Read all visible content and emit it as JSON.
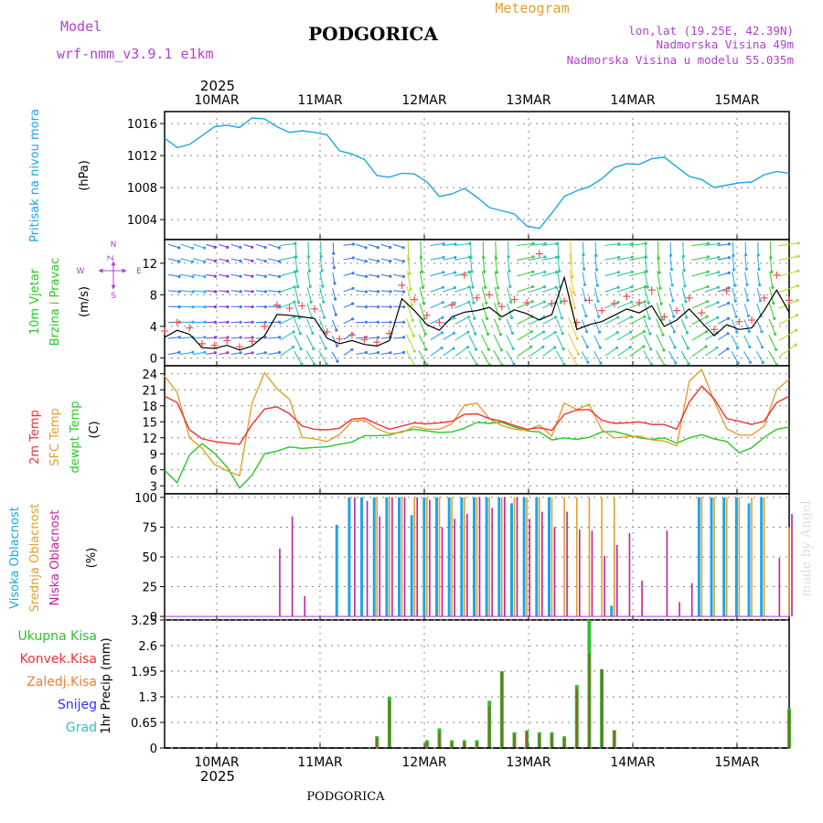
{
  "header": {
    "model_label": "Model",
    "model_name": "wrf-nmm_v3.9.1  e1km",
    "city": "PODGORICA",
    "meteogram": "Meteogram",
    "lonlat": "lon,lat (19.25E, 42.39N)",
    "elevation": "Nadmorska Visina 49m",
    "model_elevation": "Nadmorska Visina u modelu 55.035m",
    "footer_city": "PODGORICA",
    "watermark": "made by Angel"
  },
  "colors": {
    "pressure": "#1ea5e6",
    "temp2m": "#f03232",
    "sfc": "#e0a030",
    "dew": "#28c828",
    "magenta": "#c020a0",
    "violet": "#b040d0",
    "total_precip": "#30c030",
    "orange": "#f08030",
    "blue": "#3030ff",
    "cyan": "#30c0c0"
  },
  "chart_data": {
    "type": "line",
    "time_axis": {
      "year": "2025",
      "day_labels": [
        "10MAR",
        "11MAR",
        "12MAR",
        "13MAR",
        "14MAR",
        "15MAR"
      ]
    },
    "panels": [
      {
        "id": "pressure",
        "type": "line",
        "ylabel_rotated": "Pritisak na nivou mora",
        "unit": "(hPa)",
        "ylim": [
          1001.5,
          1017.5
        ],
        "yticks": [
          "1004",
          "1008",
          "1012",
          "1016"
        ],
        "series": [
          {
            "values": [
              1014.2,
              1013.0,
              1013.4,
              1014.5,
              1015.6,
              1015.8,
              1015.5,
              1016.7,
              1016.6,
              1015.6,
              1014.9,
              1015.1,
              1014.9,
              1014.6,
              1012.6,
              1012.2,
              1011.5,
              1009.5,
              1009.3,
              1009.8,
              1009.7,
              1008.7,
              1006.9,
              1007.2,
              1007.9,
              1006.8,
              1005.5,
              1005.1,
              1004.7,
              1003.2,
              1002.9,
              1004.8,
              1006.9,
              1007.6,
              1008.1,
              1009.1,
              1010.5,
              1011.0,
              1010.9,
              1011.6,
              1011.8,
              1010.6,
              1009.4,
              1009.0,
              1008.0,
              1008.3,
              1008.6,
              1008.7,
              1009.6,
              1010.0,
              1009.8
            ]
          }
        ]
      },
      {
        "id": "wind",
        "type": "line",
        "ylabel_rotated": [
          "10m Vjetar",
          "Brzina i Pravac"
        ],
        "unit": "(m/s)",
        "ylim": [
          -1,
          15
        ],
        "yticks": [
          "0",
          "4",
          "8",
          "12"
        ],
        "compass": [
          "N",
          "Z",
          "E",
          "W",
          "S"
        ],
        "series": [
          {
            "name": "speed",
            "values": [
              2.6,
              3.5,
              3.0,
              1.3,
              1.2,
              1.6,
              1.0,
              1.5,
              2.8,
              5.5,
              5.4,
              5.2,
              5.0,
              2.5,
              1.8,
              2.2,
              1.7,
              1.5,
              2.2,
              7.5,
              6.0,
              4.2,
              3.5,
              5.2,
              5.8,
              6.0,
              6.4,
              5.2,
              6.1,
              5.6,
              4.8,
              5.5,
              10.2,
              3.6,
              4.2,
              4.6,
              5.4,
              6.2,
              5.7,
              6.6,
              4.0,
              4.8,
              6.2,
              4.5,
              2.8,
              4.2,
              3.6,
              3.8,
              6.0,
              8.6,
              5.8
            ]
          },
          {
            "name": "gust",
            "values": [
              3.4,
              4.5,
              3.8,
              1.8,
              1.6,
              2.2,
              1.4,
              2.1,
              4.0,
              6.7,
              6.3,
              6.6,
              6.2,
              3.3,
              2.4,
              2.9,
              2.3,
              2.0,
              3.1,
              9.2,
              7.4,
              5.4,
              4.5,
              6.7,
              10.5,
              7.6,
              8.0,
              6.5,
              7.4,
              7.0,
              13.2,
              6.9,
              7.2,
              4.5,
              7.3,
              6.0,
              6.9,
              7.8,
              7.0,
              8.6,
              5.2,
              6.0,
              7.6,
              5.7,
              3.6,
              8.5,
              4.6,
              4.8,
              7.6,
              10.5,
              7.3
            ]
          }
        ]
      },
      {
        "id": "temperature",
        "type": "line",
        "ylabel_rotated": [
          "2m Temp",
          "SFC Temp",
          "dewpt Temp"
        ],
        "unit": "(C)",
        "ylim": [
          1.5,
          25.5
        ],
        "yticks": [
          "3",
          "6",
          "9",
          "12",
          "15",
          "18",
          "21",
          "24"
        ],
        "series": [
          {
            "name": "2m Temp",
            "values": [
              19.8,
              18.6,
              13.5,
              11.8,
              11.3,
              11.0,
              10.8,
              14.5,
              17.4,
              17.8,
              16.5,
              14.2,
              13.6,
              13.5,
              13.8,
              15.5,
              15.7,
              14.6,
              13.6,
              14.2,
              14.8,
              14.6,
              14.8,
              15.1,
              16.4,
              16.5,
              15.6,
              15.1,
              14.3,
              13.6,
              13.9,
              13.4,
              16.4,
              17.2,
              17.3,
              15.3,
              14.7,
              14.8,
              15.0,
              14.5,
              14.5,
              13.6,
              18.7,
              21.7,
              19.3,
              15.6,
              15.1,
              14.5,
              15.1,
              18.6,
              19.8
            ]
          },
          {
            "name": "SFC Temp",
            "values": [
              23.6,
              20.5,
              12.0,
              10.0,
              7.0,
              5.8,
              4.9,
              18.5,
              24.2,
              21.2,
              19.2,
              12.1,
              11.8,
              11.3,
              12.6,
              15.1,
              15.3,
              13.7,
              12.8,
              13.0,
              14.1,
              13.6,
              13.6,
              14.6,
              18.1,
              18.5,
              15.6,
              14.3,
              13.6,
              13.4,
              14.4,
              12.3,
              18.5,
              17.3,
              18.3,
              13.5,
              12.0,
              12.2,
              12.3,
              11.6,
              11.4,
              10.5,
              22.6,
              24.8,
              18.9,
              13.7,
              12.5,
              12.5,
              14.2,
              21.0,
              23.0
            ]
          },
          {
            "name": "dewpt Temp",
            "values": [
              5.9,
              3.6,
              8.8,
              10.9,
              9.1,
              6.5,
              2.6,
              5.0,
              9.0,
              9.5,
              10.3,
              10.0,
              10.2,
              10.3,
              10.8,
              11.2,
              12.4,
              12.4,
              12.5,
              13.2,
              13.6,
              13.3,
              13.0,
              13.1,
              13.8,
              14.9,
              14.7,
              14.9,
              14.0,
              13.3,
              13.1,
              11.6,
              12.0,
              11.7,
              12.1,
              13.1,
              13.2,
              12.6,
              12.0,
              11.7,
              12.0,
              11.0,
              12.0,
              12.6,
              11.8,
              11.3,
              9.2,
              10.1,
              12.1,
              13.6,
              14.0
            ]
          }
        ]
      },
      {
        "id": "cloud",
        "type": "bar",
        "ylabel_rotated": [
          "Visoka Oblacnost",
          "Srednja Oblacnost",
          "Niska Oblacnost"
        ],
        "unit": "(%)",
        "ylim": [
          -3,
          103
        ],
        "yticks": [
          "0",
          "25",
          "50",
          "75",
          "100"
        ],
        "series": [
          {
            "name": "Visoka Oblacnost",
            "values": [
              0,
              0,
              0,
              0,
              0,
              0,
              0,
              0,
              0,
              0,
              0,
              0,
              0,
              0,
              77,
              100,
              100,
              100,
              100,
              100,
              85,
              100,
              100,
              100,
              100,
              100,
              100,
              100,
              95,
              100,
              100,
              100,
              0,
              0,
              0,
              0,
              9,
              0,
              0,
              0,
              0,
              0,
              0,
              100,
              100,
              100,
              100,
              95,
              100,
              0,
              0
            ]
          },
          {
            "name": "Srednja Oblacnost",
            "values": [
              0,
              0,
              0,
              0,
              0,
              0,
              0,
              0,
              0,
              0,
              0,
              0,
              0,
              0,
              0,
              0,
              0,
              100,
              100,
              100,
              100,
              100,
              100,
              100,
              100,
              100,
              100,
              100,
              100,
              100,
              100,
              100,
              100,
              100,
              100,
              100,
              100,
              0,
              0,
              0,
              0,
              0,
              0,
              100,
              100,
              100,
              100,
              100,
              100,
              0,
              75
            ]
          },
          {
            "name": "Niska Oblacnost",
            "values": [
              0,
              0,
              0,
              0,
              0,
              0,
              0,
              0,
              0,
              57,
              84,
              17,
              0,
              0,
              0,
              100,
              97,
              84,
              100,
              100,
              100,
              98,
              75,
              82,
              86,
              100,
              91,
              100,
              100,
              82,
              88,
              75,
              88,
              73,
              72,
              51,
              60,
              70,
              30,
              0,
              72,
              12,
              28,
              0,
              0,
              0,
              0,
              0,
              0,
              49,
              86
            ]
          }
        ]
      },
      {
        "id": "precip",
        "type": "bar",
        "ylabel_rotated": "1hr Precip (mm)",
        "ylim": [
          0,
          3.25
        ],
        "yticks": [
          "0",
          "0.65",
          "1.3",
          "1.95",
          "2.6",
          "3.25"
        ],
        "legend": [
          "Ukupna Kisa",
          "Konvek.Kisa",
          "Zaledj.Kisa",
          "Snijeg",
          "Grad"
        ],
        "series": [
          {
            "name": "Ukupna Kisa",
            "values": [
              0,
              0,
              0,
              0,
              0,
              0,
              0,
              0,
              0,
              0,
              0,
              0,
              0,
              0,
              0,
              0,
              0,
              0.3,
              1.3,
              0,
              0,
              0.2,
              0.5,
              0.2,
              0.2,
              0.2,
              1.2,
              1.95,
              0.4,
              0.45,
              0.4,
              0.4,
              0.3,
              1.6,
              3.25,
              2.0,
              0.45,
              0,
              0,
              0,
              0,
              0,
              0,
              0,
              0,
              0,
              0,
              0,
              0,
              0,
              1.0
            ]
          },
          {
            "name": "Konvek.Kisa",
            "values": [
              0,
              0,
              0,
              0,
              0,
              0,
              0,
              0,
              0,
              0,
              0,
              0,
              0,
              0,
              0,
              0,
              0,
              0.25,
              1.2,
              0,
              0,
              0.15,
              0.4,
              0.15,
              0.15,
              0.15,
              1.05,
              1.95,
              0.35,
              0.4,
              0.35,
              0.35,
              0.25,
              1.5,
              2.4,
              2.0,
              0.45,
              0,
              0,
              0,
              0,
              0,
              0,
              0,
              0,
              0,
              0,
              0,
              0,
              0,
              0.95
            ]
          }
        ]
      }
    ]
  }
}
